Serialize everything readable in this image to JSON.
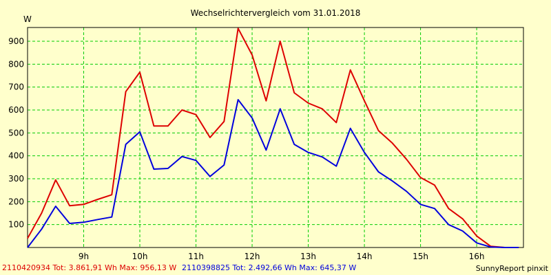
{
  "chart_data": {
    "type": "line",
    "title": "Wechselrichtervergleich vom 31.01.2018",
    "ylabel": "W",
    "xlabel": "",
    "ylim": [
      0,
      960
    ],
    "xlim": [
      8.0,
      16.833
    ],
    "y_ticks": [
      "100",
      "200",
      "300",
      "400",
      "500",
      "600",
      "700",
      "800",
      "900"
    ],
    "y_tick_values": [
      100,
      200,
      300,
      400,
      500,
      600,
      700,
      800,
      900
    ],
    "x_ticks": [
      "9h",
      "10h",
      "11h",
      "12h",
      "13h",
      "14h",
      "15h",
      "16h"
    ],
    "x_tick_values": [
      9,
      10,
      11,
      12,
      13,
      14,
      15,
      16
    ],
    "grid": true,
    "series": [
      {
        "name": "2110420934",
        "color": "#dd0000",
        "x": [
          8.0,
          8.25,
          8.5,
          8.75,
          9.0,
          9.25,
          9.5,
          9.75,
          10.0,
          10.25,
          10.5,
          10.75,
          11.0,
          11.25,
          11.5,
          11.75,
          12.0,
          12.25,
          12.5,
          12.75,
          13.0,
          13.25,
          13.5,
          13.75,
          14.0,
          14.25,
          14.5,
          14.75,
          15.0,
          15.25,
          15.5,
          15.75,
          16.0,
          16.25,
          16.5,
          16.75
        ],
        "values": [
          40,
          150,
          295,
          182,
          188,
          210,
          230,
          680,
          765,
          530,
          530,
          600,
          580,
          480,
          550,
          956,
          840,
          640,
          900,
          675,
          630,
          605,
          545,
          775,
          640,
          510,
          455,
          385,
          305,
          272,
          170,
          125,
          50,
          5,
          0,
          0
        ]
      },
      {
        "name": "2110398825",
        "color": "#0000dd",
        "x": [
          8.0,
          8.25,
          8.5,
          8.75,
          9.0,
          9.25,
          9.5,
          9.75,
          10.0,
          10.25,
          10.5,
          10.75,
          11.0,
          11.25,
          11.5,
          11.75,
          12.0,
          12.25,
          12.5,
          12.75,
          13.0,
          13.25,
          13.5,
          13.75,
          14.0,
          14.25,
          14.5,
          14.75,
          15.0,
          15.25,
          15.5,
          15.75,
          16.0,
          16.25,
          16.5,
          16.75
        ],
        "values": [
          0,
          80,
          180,
          105,
          110,
          122,
          133,
          450,
          505,
          342,
          345,
          397,
          380,
          310,
          360,
          645,
          565,
          425,
          605,
          450,
          415,
          395,
          355,
          520,
          415,
          330,
          290,
          245,
          188,
          170,
          100,
          72,
          20,
          2,
          0,
          0
        ]
      }
    ],
    "legend": [
      {
        "text": "2110420934 Tot: 3.861,91 Wh Max: 956,13 W",
        "color": "#dd0000"
      },
      {
        "text": "2110398825 Tot: 2.492,66 Wh Max: 645,37 W",
        "color": "#0000dd"
      }
    ],
    "legend_position": "bottom-left",
    "credit": "SunnyReport pinxit"
  }
}
